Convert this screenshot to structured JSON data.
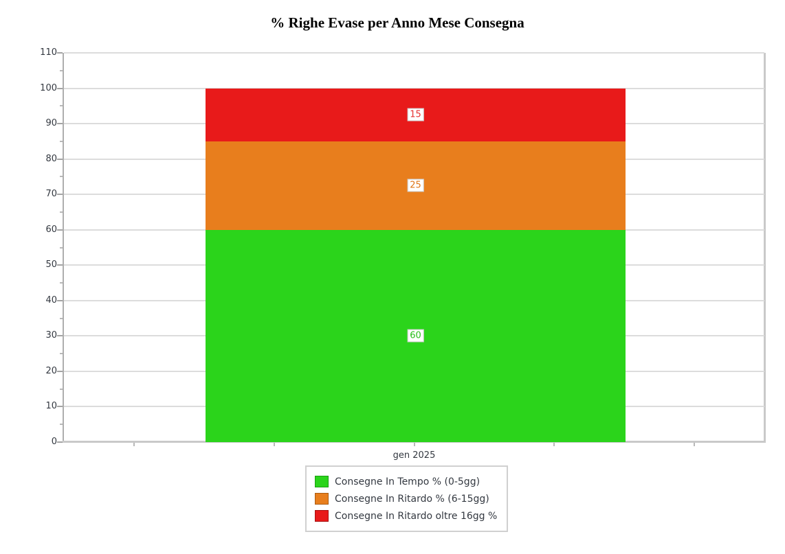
{
  "chart_data": {
    "type": "bar",
    "stacked": true,
    "title": "% Righe Evase per Anno Mese Consegna",
    "categories": [
      "gen 2025"
    ],
    "series": [
      {
        "name": "Consegne In Tempo % (0-5gg)",
        "values": [
          60
        ],
        "color": "#2bd41b",
        "swatch_border": "#1a9e10",
        "label_color": "#25bd17"
      },
      {
        "name": "Consegne In Ritardo % (6-15gg)",
        "values": [
          25
        ],
        "color": "#e87e1d",
        "swatch_border": "#aa5a10",
        "label_color": "#df7517"
      },
      {
        "name": "Consegne In Ritardo oltre 16gg %",
        "values": [
          15
        ],
        "color": "#e81a1a",
        "swatch_border": "#a60f0f",
        "label_color": "#e53030"
      }
    ],
    "ylim": [
      0,
      110
    ],
    "yticks": [
      0,
      10,
      20,
      30,
      40,
      50,
      60,
      70,
      80,
      90,
      100,
      110
    ],
    "yminor_step": 5,
    "grid": true,
    "legend_position": "bottom",
    "colors": {
      "gridline": "#dcdcdc",
      "axis": "#aeaeae",
      "tick_label": "#333840",
      "legend_border": "#d0d0d0",
      "background": "#ffffff"
    }
  }
}
